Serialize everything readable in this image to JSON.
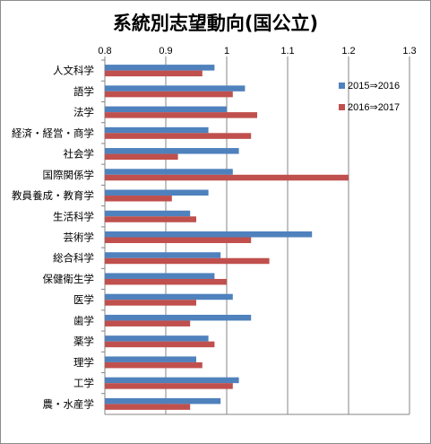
{
  "chart_data": {
    "type": "bar",
    "orientation": "horizontal",
    "title": "系統別志望動向(国公立)",
    "xlim": [
      0.8,
      1.3
    ],
    "xticks": [
      "0.8",
      "0.9",
      "1",
      "1.1",
      "1.2",
      "1.3"
    ],
    "grid": true,
    "legend_position": "top-right",
    "categories": [
      "人文科学",
      "語学",
      "法学",
      "経済・経営・商学",
      "社会学",
      "国際関係学",
      "教員養成・教育学",
      "生活科学",
      "芸術学",
      "総合科学",
      "保健衛生学",
      "医学",
      "歯学",
      "薬学",
      "理学",
      "工学",
      "農・水産学"
    ],
    "series": [
      {
        "name": "2015⇒2016",
        "color": "#4f81bd",
        "values": [
          0.98,
          1.03,
          1.0,
          0.97,
          1.02,
          1.01,
          0.97,
          0.94,
          1.14,
          0.99,
          0.98,
          1.01,
          1.04,
          0.97,
          0.95,
          1.02,
          0.99
        ]
      },
      {
        "name": "2016⇒2017",
        "color": "#c0504d",
        "values": [
          0.96,
          1.01,
          1.05,
          1.04,
          0.92,
          1.2,
          0.91,
          0.95,
          1.04,
          1.07,
          1.0,
          0.95,
          0.94,
          0.98,
          0.96,
          1.01,
          0.94
        ]
      }
    ]
  }
}
